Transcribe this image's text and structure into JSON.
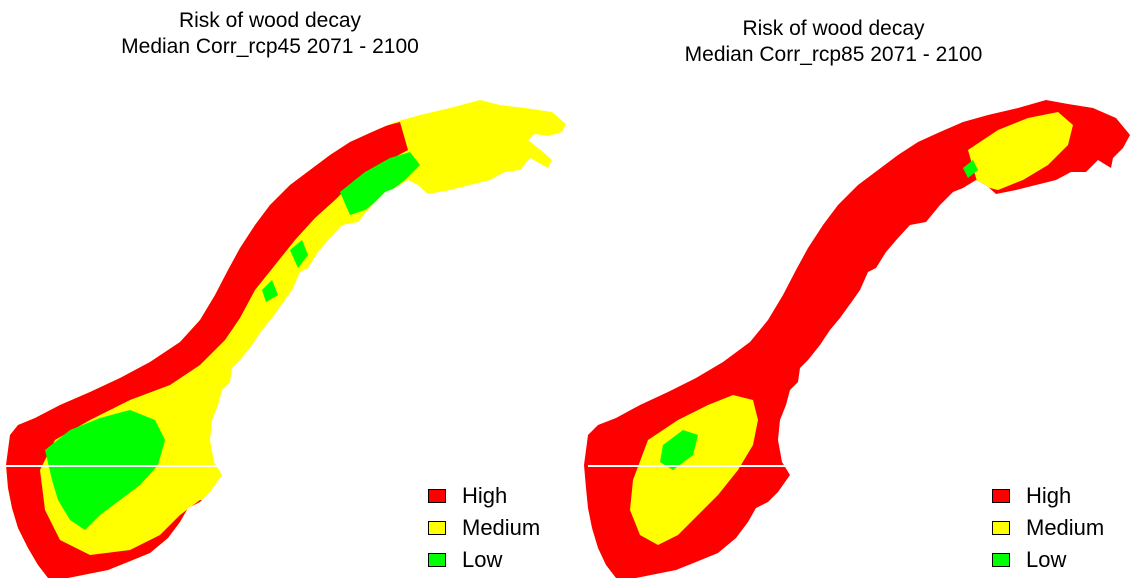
{
  "colors": {
    "high": "#ff0000",
    "medium": "#ffff00",
    "low": "#00ff00",
    "background": "#ffffff"
  },
  "maps": [
    {
      "title_line1": "Risk of wood decay",
      "title_line2": "Median Corr_rcp45   2071 - 2100",
      "pattern": "rcp45",
      "legend": [
        {
          "label": "High",
          "level": "high"
        },
        {
          "label": "Medium",
          "level": "medium"
        },
        {
          "label": "Low",
          "level": "low"
        }
      ]
    },
    {
      "title_line1": "Risk of wood decay",
      "title_line2": "Median Corr_rcp85   2071 - 2100",
      "pattern": "rcp85",
      "legend": [
        {
          "label": "High",
          "level": "high"
        },
        {
          "label": "Medium",
          "level": "medium"
        },
        {
          "label": "Low",
          "level": "low"
        }
      ]
    }
  ]
}
